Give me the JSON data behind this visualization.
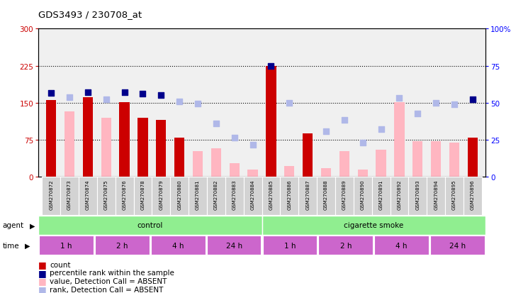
{
  "title": "GDS3493 / 230708_at",
  "samples": [
    "GSM270872",
    "GSM270873",
    "GSM270874",
    "GSM270875",
    "GSM270876",
    "GSM270878",
    "GSM270879",
    "GSM270880",
    "GSM270881",
    "GSM270882",
    "GSM270883",
    "GSM270884",
    "GSM270885",
    "GSM270886",
    "GSM270887",
    "GSM270888",
    "GSM270889",
    "GSM270890",
    "GSM270891",
    "GSM270892",
    "GSM270893",
    "GSM270894",
    "GSM270895",
    "GSM270896"
  ],
  "count_values": [
    155,
    0,
    162,
    0,
    152,
    120,
    115,
    80,
    0,
    0,
    0,
    0,
    225,
    0,
    88,
    0,
    0,
    0,
    0,
    0,
    0,
    0,
    0,
    80
  ],
  "rank_values": [
    170,
    0,
    172,
    0,
    172,
    168,
    165,
    0,
    0,
    0,
    0,
    0,
    225,
    0,
    0,
    0,
    0,
    0,
    0,
    0,
    0,
    0,
    0,
    157
  ],
  "absent_value_bars": [
    0,
    132,
    0,
    120,
    0,
    0,
    0,
    70,
    52,
    58,
    28,
    15,
    0,
    22,
    0,
    18,
    52,
    15,
    55,
    152,
    72,
    72,
    70,
    0
  ],
  "absent_rank_dots": [
    0,
    162,
    0,
    157,
    0,
    0,
    0,
    153,
    148,
    108,
    80,
    65,
    0,
    150,
    0,
    92,
    115,
    70,
    97,
    160,
    128,
    150,
    147,
    0
  ],
  "present_rank_dots": [
    170,
    0,
    172,
    0,
    172,
    168,
    165,
    0,
    0,
    0,
    0,
    0,
    225,
    0,
    0,
    0,
    0,
    0,
    0,
    0,
    0,
    0,
    0,
    157
  ],
  "ylim_left": [
    0,
    300
  ],
  "ylim_right": [
    0,
    100
  ],
  "yticks_left": [
    0,
    75,
    150,
    225,
    300
  ],
  "yticks_right": [
    0,
    25,
    50,
    75,
    100
  ],
  "bar_color_present": "#cc0000",
  "bar_color_absent_value": "#ffb6c1",
  "dot_color_present": "#00008b",
  "dot_color_absent_rank": "#b0b8e8",
  "bar_width": 0.55,
  "dot_size": 30,
  "plot_bg_color": "#f0f0f0",
  "agent_label1": "control",
  "agent_label2": "cigarette smoke",
  "agent_color": "#90ee90",
  "time_labels": [
    "1 h",
    "2 h",
    "4 h",
    "24 h",
    "1 h",
    "2 h",
    "4 h",
    "24 h"
  ],
  "time_color": "#cc66cc",
  "legend_items": [
    {
      "color": "#cc0000",
      "label": "count"
    },
    {
      "color": "#00008b",
      "label": "percentile rank within the sample"
    },
    {
      "color": "#ffb6c1",
      "label": "value, Detection Call = ABSENT"
    },
    {
      "color": "#b0b8e8",
      "label": "rank, Detection Call = ABSENT"
    }
  ]
}
